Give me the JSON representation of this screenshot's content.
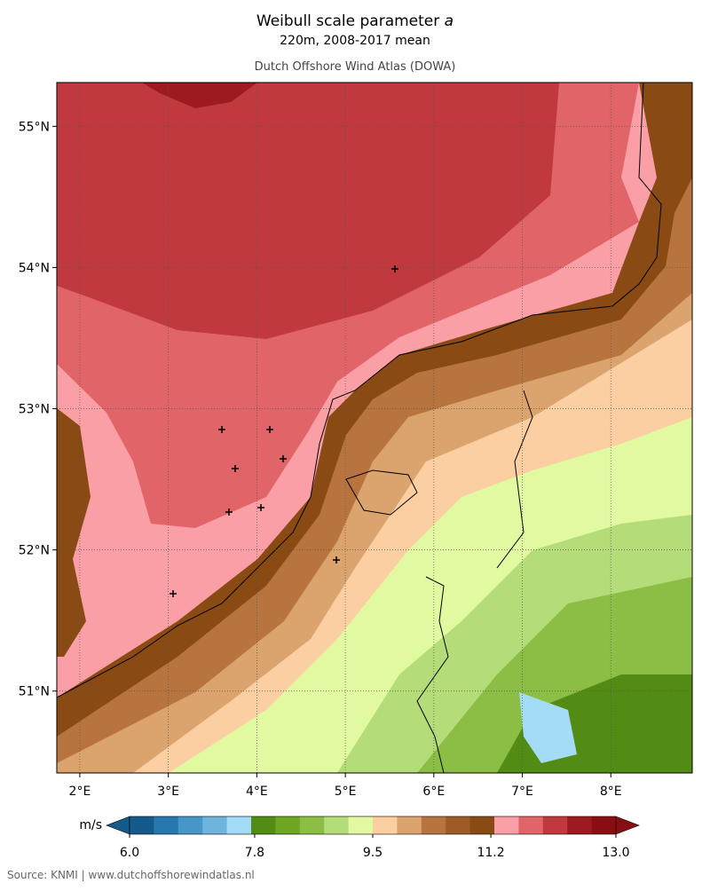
{
  "header": {
    "title": "Weibull scale parameter",
    "title_symbol": "a",
    "subtitle": "220m, 2008-2017 mean",
    "source_title": "Dutch Offshore Wind Atlas (DOWA)"
  },
  "map": {
    "lon_range": [
      1.74,
      8.92
    ],
    "lat_range": [
      50.42,
      55.31
    ],
    "lon_ticks": [
      {
        "value": 2,
        "label": "2°E"
      },
      {
        "value": 3,
        "label": "3°E"
      },
      {
        "value": 4,
        "label": "4°E"
      },
      {
        "value": 5,
        "label": "5°E"
      },
      {
        "value": 6,
        "label": "6°E"
      },
      {
        "value": 7,
        "label": "7°E"
      },
      {
        "value": 8,
        "label": "8°E"
      }
    ],
    "lat_ticks": [
      {
        "value": 51,
        "label": "51°N"
      },
      {
        "value": 52,
        "label": "52°N"
      },
      {
        "value": 53,
        "label": "53°N"
      },
      {
        "value": 54,
        "label": "54°N"
      },
      {
        "value": 55,
        "label": "55°N"
      }
    ],
    "grid": true
  },
  "colorbar": {
    "unit": "m/s",
    "clim": [
      6,
      13
    ],
    "colors": [
      "#145a8c",
      "#2878b0",
      "#4696c8",
      "#6eb4dc",
      "#a5dcf5",
      "#528c14",
      "#6ea523",
      "#8cbe46",
      "#b4dc78",
      "#e1f9a0",
      "#fbcfa1",
      "#dba36d",
      "#b8743f",
      "#a05a28",
      "#8a4a14",
      "#fa9fa5",
      "#e06468",
      "#c0393f",
      "#9e1a21",
      "#880e14"
    ],
    "ticks": [
      {
        "value": 6,
        "label": "6.0"
      },
      {
        "value": 7.8,
        "label": "7.8"
      },
      {
        "value": 9.5,
        "label": "9.5"
      },
      {
        "value": 11.2,
        "label": "11.2"
      },
      {
        "value": 13,
        "label": "13.0"
      }
    ]
  },
  "footer": {
    "source": "Source: KNMI | www.dutchoffshorewindatlas.nl"
  }
}
